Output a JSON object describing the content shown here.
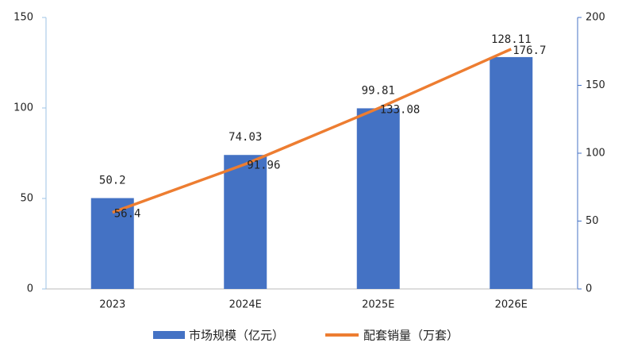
{
  "chart_data": {
    "type": "bar-line",
    "categories": [
      "2023",
      "2024E",
      "2025E",
      "2026E"
    ],
    "series": [
      {
        "name": "市场规模（亿元）",
        "color": "#4472c4",
        "values": [
          50.2,
          74.03,
          99.81,
          128.11
        ]
      },
      {
        "name": "配套销量（万套）",
        "color": "#ed7d31",
        "axis": "y2",
        "values": [
          56.4,
          91.96,
          133.08,
          176.7
        ]
      }
    ],
    "ylim": [
      0,
      150
    ],
    "yticks": [
      0,
      50,
      100,
      150
    ],
    "y2lim": [
      0,
      200
    ],
    "y2ticks": [
      0,
      50,
      100,
      150,
      200
    ],
    "legend": "bottom"
  }
}
